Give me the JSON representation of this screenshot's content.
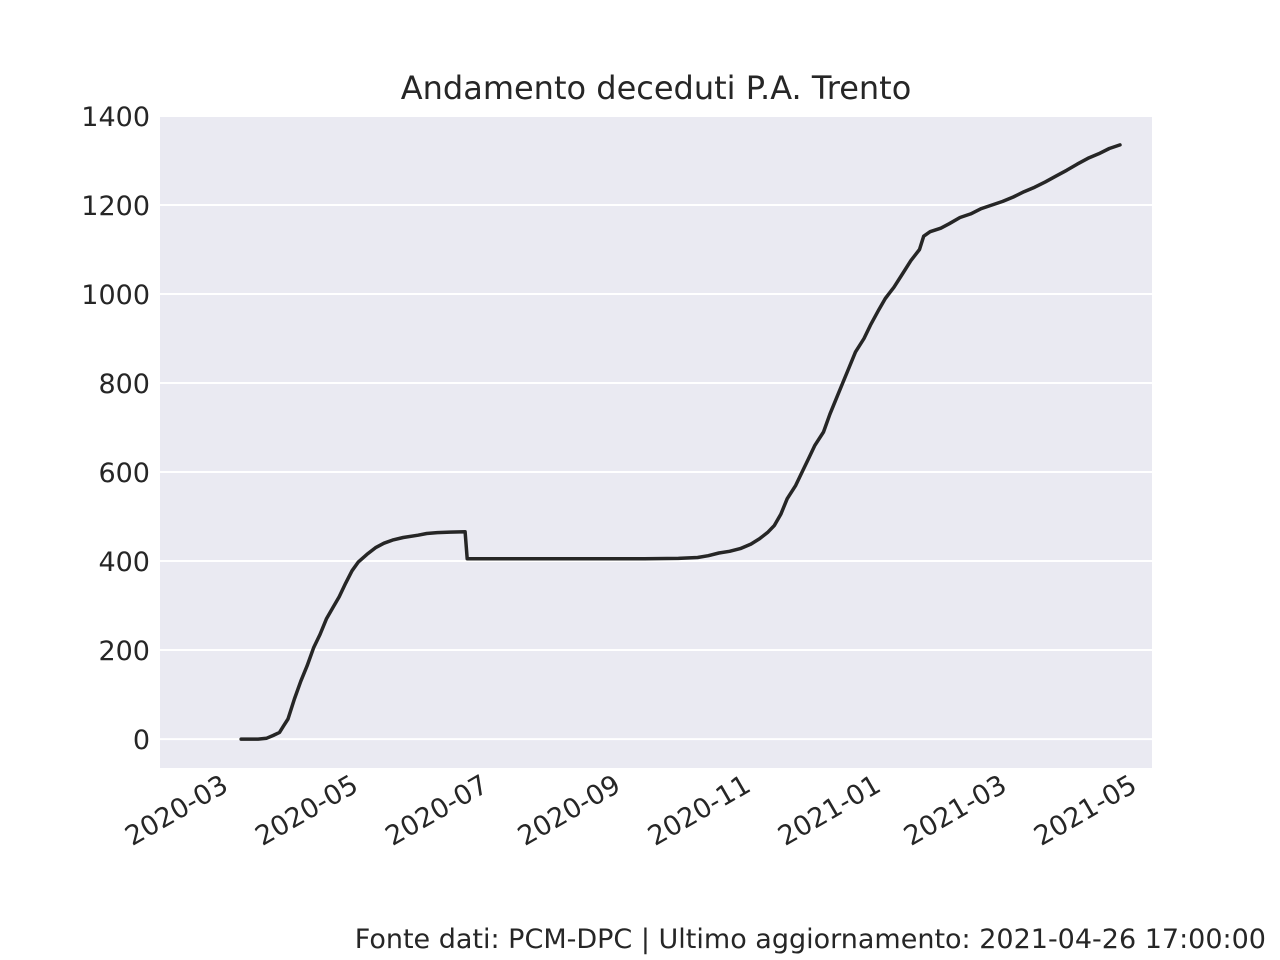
{
  "chart_data": {
    "type": "line",
    "title": "Andamento deceduti P.A. Trento",
    "xlabel": "",
    "ylabel": "",
    "ylim": [
      -65,
      1400
    ],
    "yticks": [
      0,
      200,
      400,
      600,
      800,
      1000,
      1200,
      1400
    ],
    "xticks": [
      "2020-03",
      "2020-05",
      "2020-07",
      "2020-09",
      "2020-11",
      "2021-01",
      "2021-03",
      "2021-05"
    ],
    "grid": true,
    "series": [
      {
        "name": "deceduti",
        "color": "#262626",
        "points": [
          [
            "2020-03-10",
            0
          ],
          [
            "2020-03-18",
            0
          ],
          [
            "2020-03-22",
            2
          ],
          [
            "2020-03-25",
            8
          ],
          [
            "2020-03-28",
            15
          ],
          [
            "2020-03-30",
            30
          ],
          [
            "2020-04-01",
            45
          ],
          [
            "2020-04-04",
            90
          ],
          [
            "2020-04-07",
            130
          ],
          [
            "2020-04-10",
            165
          ],
          [
            "2020-04-13",
            205
          ],
          [
            "2020-04-16",
            235
          ],
          [
            "2020-04-19",
            270
          ],
          [
            "2020-04-22",
            295
          ],
          [
            "2020-04-25",
            320
          ],
          [
            "2020-04-28",
            350
          ],
          [
            "2020-05-01",
            378
          ],
          [
            "2020-05-04",
            398
          ],
          [
            "2020-05-08",
            415
          ],
          [
            "2020-05-12",
            430
          ],
          [
            "2020-05-16",
            440
          ],
          [
            "2020-05-20",
            447
          ],
          [
            "2020-05-25",
            453
          ],
          [
            "2020-06-01",
            458
          ],
          [
            "2020-06-05",
            462
          ],
          [
            "2020-06-10",
            464
          ],
          [
            "2020-06-16",
            465
          ],
          [
            "2020-06-23",
            466
          ],
          [
            "2020-06-24",
            405
          ],
          [
            "2020-07-15",
            405
          ],
          [
            "2020-08-15",
            405
          ],
          [
            "2020-09-15",
            405
          ],
          [
            "2020-10-01",
            406
          ],
          [
            "2020-10-10",
            408
          ],
          [
            "2020-10-15",
            412
          ],
          [
            "2020-10-20",
            418
          ],
          [
            "2020-10-25",
            422
          ],
          [
            "2020-10-30",
            428
          ],
          [
            "2020-11-04",
            438
          ],
          [
            "2020-11-08",
            450
          ],
          [
            "2020-11-12",
            465
          ],
          [
            "2020-11-15",
            480
          ],
          [
            "2020-11-18",
            505
          ],
          [
            "2020-11-21",
            540
          ],
          [
            "2020-11-25",
            570
          ],
          [
            "2020-11-28",
            600
          ],
          [
            "2020-12-01",
            630
          ],
          [
            "2020-12-04",
            660
          ],
          [
            "2020-12-08",
            690
          ],
          [
            "2020-12-11",
            730
          ],
          [
            "2020-12-14",
            765
          ],
          [
            "2020-12-17",
            800
          ],
          [
            "2020-12-20",
            835
          ],
          [
            "2020-12-23",
            870
          ],
          [
            "2020-12-27",
            900
          ],
          [
            "2020-12-30",
            930
          ],
          [
            "2021-01-03",
            965
          ],
          [
            "2021-01-06",
            990
          ],
          [
            "2021-01-10",
            1015
          ],
          [
            "2021-01-14",
            1045
          ],
          [
            "2021-01-18",
            1075
          ],
          [
            "2021-01-22",
            1100
          ],
          [
            "2021-01-24",
            1130
          ],
          [
            "2021-01-27",
            1140
          ],
          [
            "2021-02-01",
            1148
          ],
          [
            "2021-02-05",
            1158
          ],
          [
            "2021-02-10",
            1172
          ],
          [
            "2021-02-15",
            1180
          ],
          [
            "2021-02-20",
            1192
          ],
          [
            "2021-02-25",
            1200
          ],
          [
            "2021-03-02",
            1208
          ],
          [
            "2021-03-07",
            1218
          ],
          [
            "2021-03-12",
            1230
          ],
          [
            "2021-03-17",
            1240
          ],
          [
            "2021-03-22",
            1252
          ],
          [
            "2021-03-27",
            1265
          ],
          [
            "2021-04-01",
            1278
          ],
          [
            "2021-04-06",
            1292
          ],
          [
            "2021-04-11",
            1305
          ],
          [
            "2021-04-16",
            1315
          ],
          [
            "2021-04-21",
            1327
          ],
          [
            "2021-04-26",
            1335
          ]
        ]
      }
    ]
  },
  "footer": {
    "text": "Fonte dati: PCM-DPC | Ultimo aggiornamento: 2021-04-26 17:00:00"
  }
}
